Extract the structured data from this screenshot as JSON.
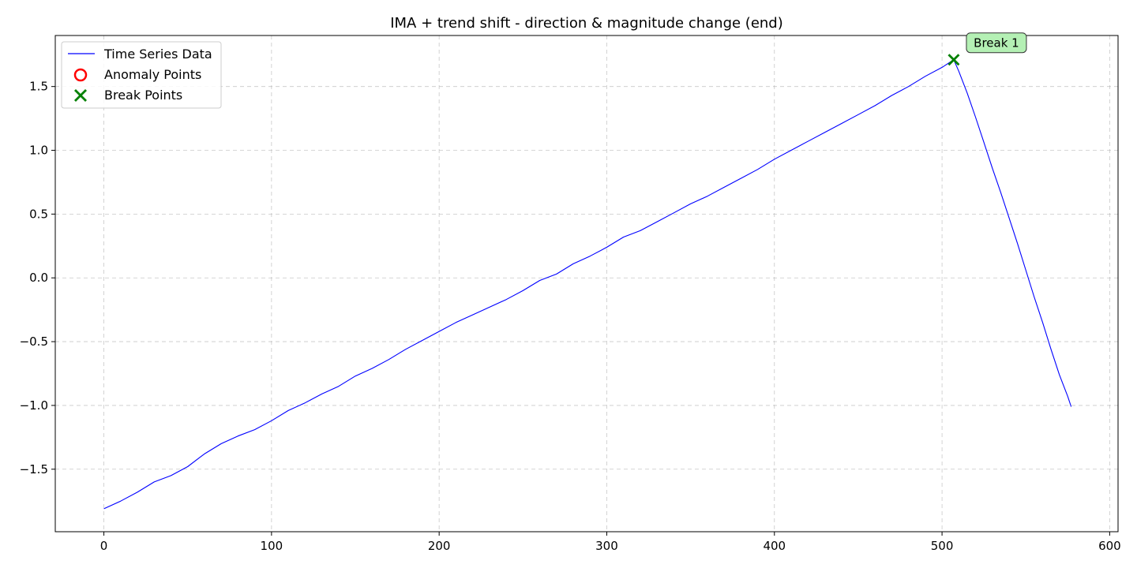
{
  "chart_data": {
    "type": "line",
    "title": "IMA + trend shift - direction & magnitude change (end)",
    "xlabel": "",
    "ylabel": "",
    "xlim": [
      -29,
      605
    ],
    "ylim": [
      -1.99,
      1.9
    ],
    "xticks": [
      0,
      100,
      200,
      300,
      400,
      500,
      600
    ],
    "yticks": [
      -1.5,
      -1.0,
      -0.5,
      0.0,
      0.5,
      1.0,
      1.5
    ],
    "xtick_labels": [
      "0",
      "100",
      "200",
      "300",
      "400",
      "500",
      "600"
    ],
    "ytick_labels": [
      "−1.5",
      "−1.0",
      "−0.5",
      "0.0",
      "0.5",
      "1.0",
      "1.5"
    ],
    "grid": true,
    "legend_position": "top-left",
    "series": [
      {
        "name": "Time Series Data",
        "kind": "line",
        "color": "#0000ff",
        "x": [
          0,
          10,
          20,
          30,
          40,
          50,
          60,
          70,
          80,
          90,
          100,
          110,
          120,
          130,
          140,
          150,
          160,
          170,
          180,
          190,
          200,
          210,
          220,
          230,
          240,
          250,
          260,
          270,
          280,
          290,
          300,
          310,
          320,
          330,
          340,
          350,
          360,
          370,
          380,
          390,
          400,
          410,
          420,
          430,
          440,
          450,
          460,
          470,
          480,
          490,
          500,
          507,
          510,
          515,
          520,
          525,
          530,
          535,
          540,
          545,
          550,
          555,
          560,
          565,
          570,
          575,
          577
        ],
        "y": [
          -1.81,
          -1.75,
          -1.68,
          -1.6,
          -1.55,
          -1.48,
          -1.38,
          -1.3,
          -1.24,
          -1.19,
          -1.12,
          -1.04,
          -0.98,
          -0.91,
          -0.85,
          -0.77,
          -0.71,
          -0.64,
          -0.56,
          -0.49,
          -0.42,
          -0.35,
          -0.29,
          -0.23,
          -0.17,
          -0.1,
          -0.02,
          0.03,
          0.11,
          0.17,
          0.24,
          0.32,
          0.37,
          0.44,
          0.51,
          0.58,
          0.64,
          0.71,
          0.78,
          0.85,
          0.93,
          1.0,
          1.07,
          1.14,
          1.21,
          1.28,
          1.35,
          1.43,
          1.5,
          1.58,
          1.65,
          1.71,
          1.62,
          1.45,
          1.26,
          1.06,
          0.86,
          0.67,
          0.47,
          0.27,
          0.06,
          -0.15,
          -0.35,
          -0.56,
          -0.76,
          -0.93,
          -1.01
        ]
      }
    ],
    "anomaly_points": {
      "name": "Anomaly Points",
      "color": "#ff0000",
      "points": []
    },
    "break_points": {
      "name": "Break Points",
      "color": "#008000",
      "points": [
        {
          "x": 507,
          "y": 1.71
        }
      ]
    },
    "annotations": [
      {
        "text": "Break 1",
        "x": 507,
        "y": 1.71,
        "bg": "#b4f0b4"
      }
    ]
  }
}
